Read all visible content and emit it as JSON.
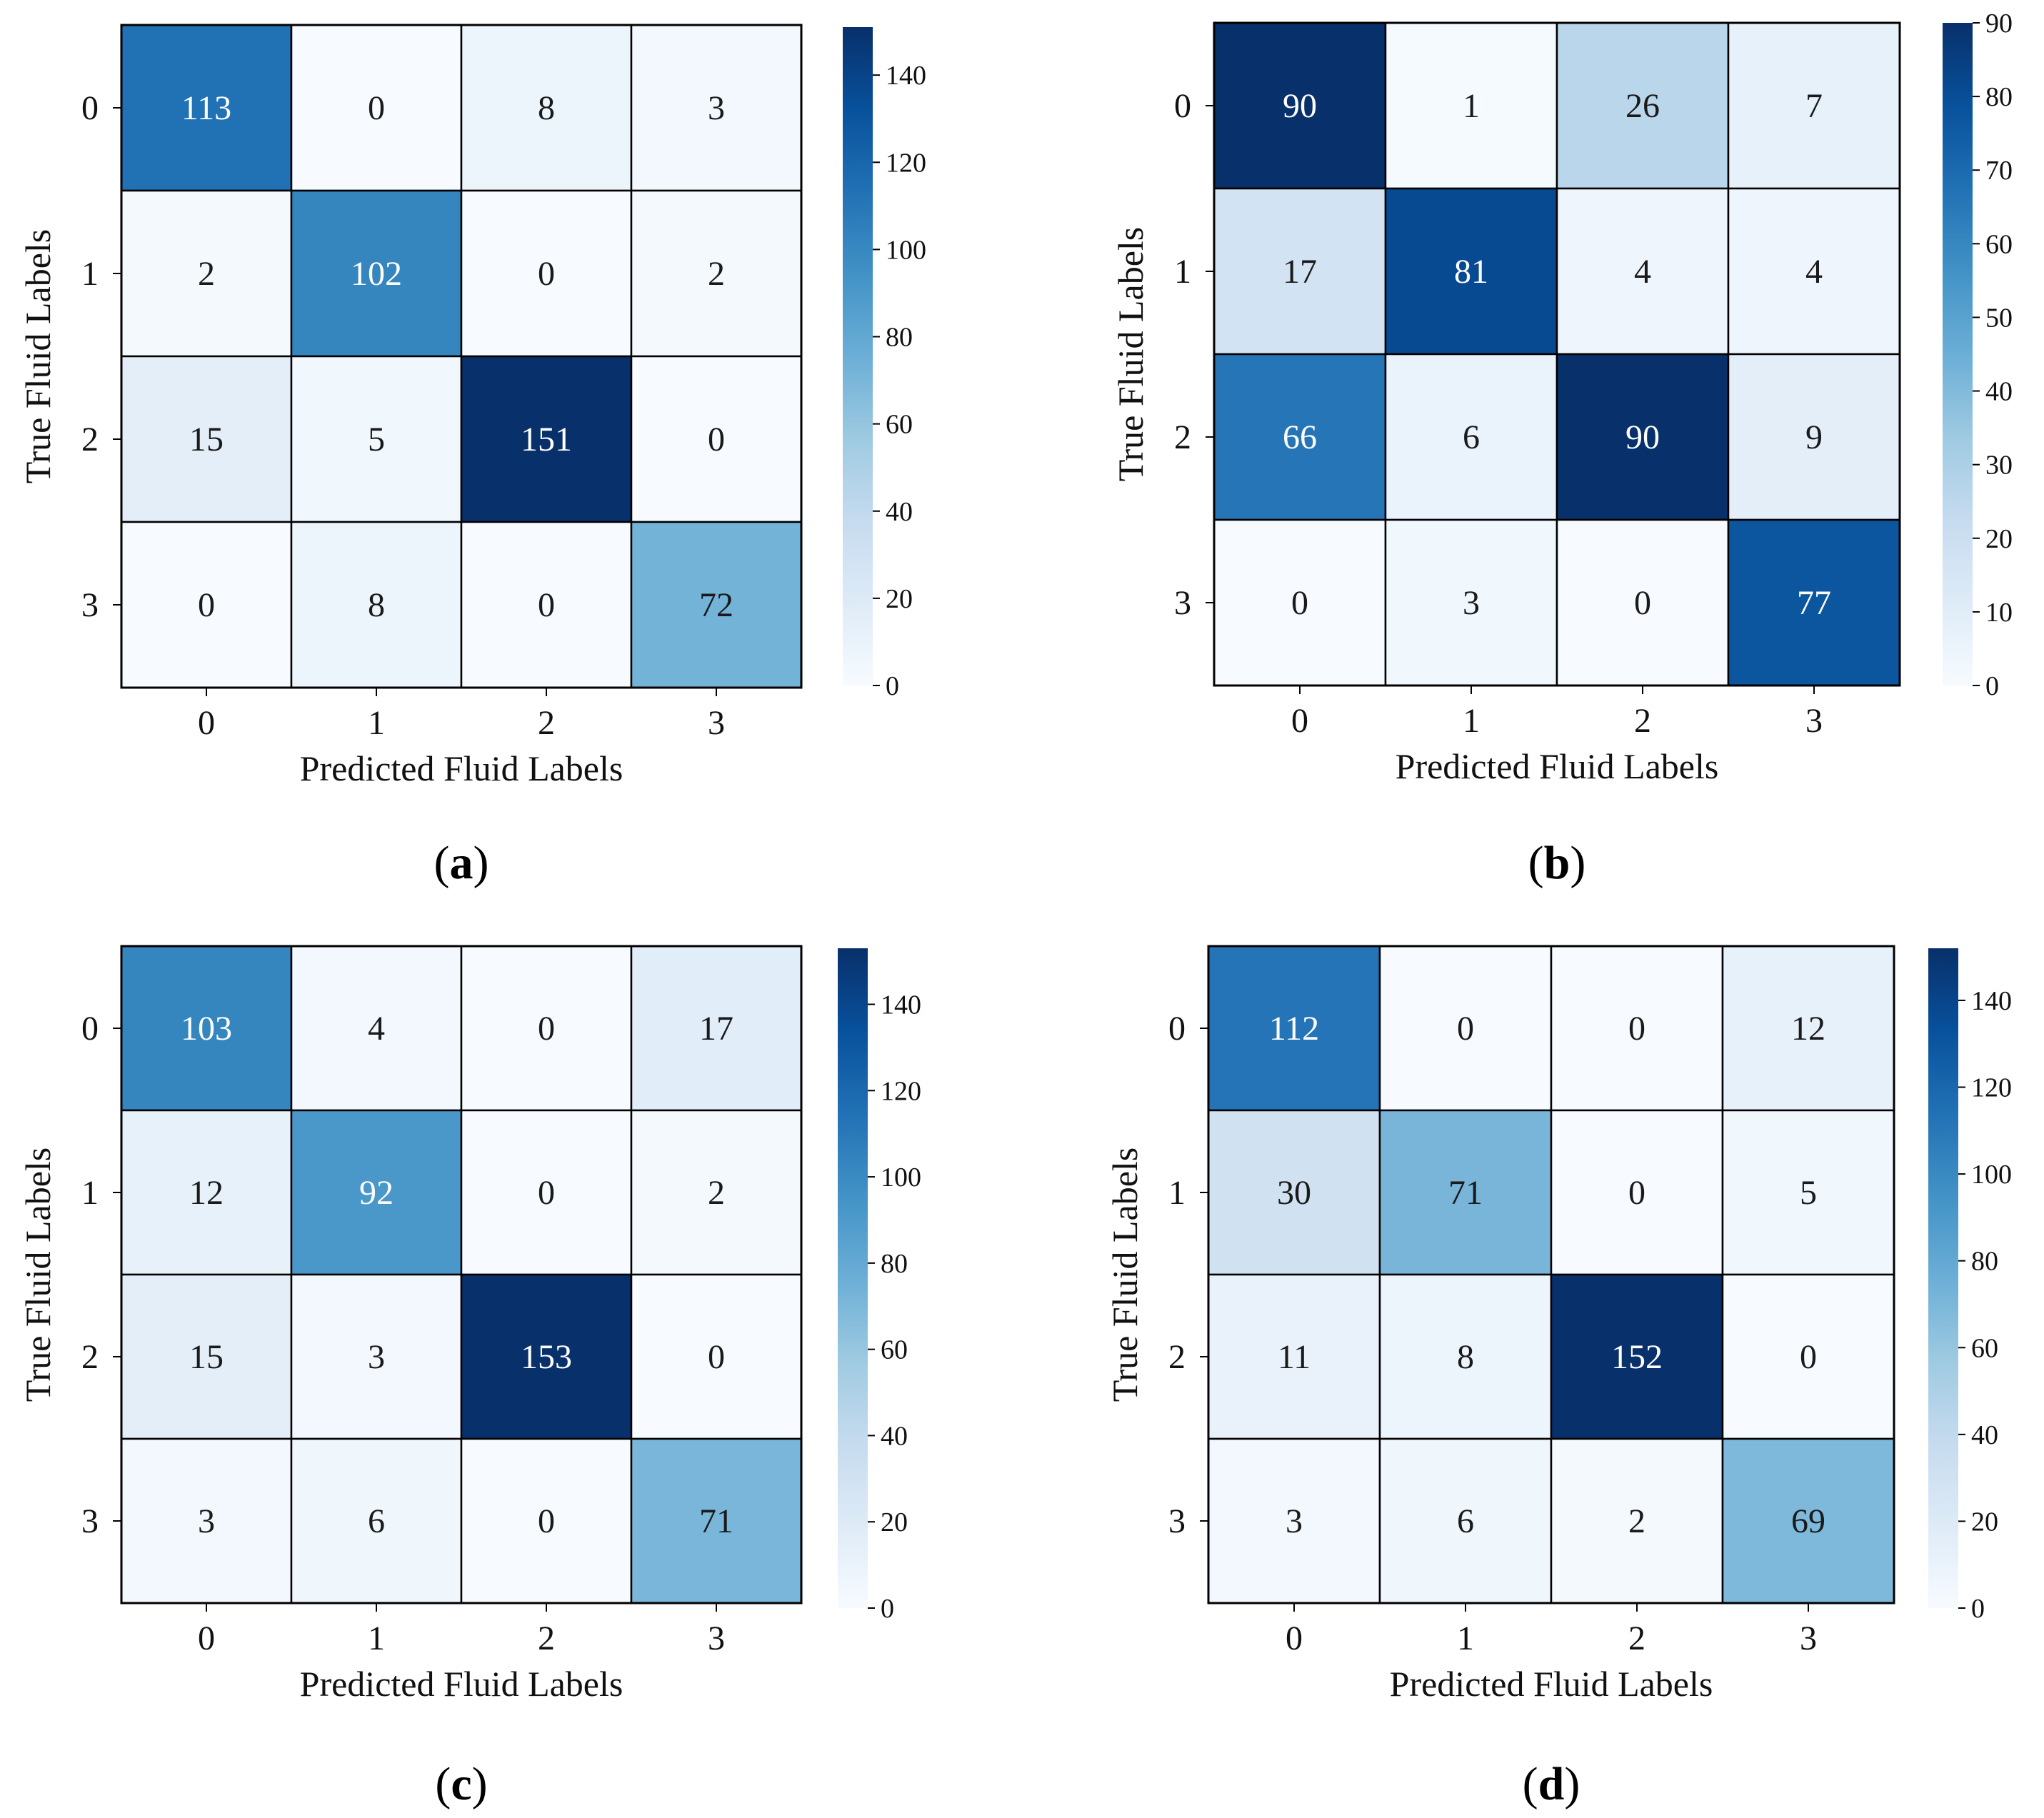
{
  "figure": {
    "colormap": "Blues",
    "colors": {
      "low": "#f7fbff",
      "high": "#08306b",
      "border": "#000000"
    }
  },
  "chart_data": [
    {
      "type": "heatmap",
      "panel": "a",
      "panel_label": "a",
      "xlabel": "Predicted Fluid Labels",
      "ylabel": "True Fluid Labels",
      "x_categories": [
        "0",
        "1",
        "2",
        "3"
      ],
      "y_categories": [
        "0",
        "1",
        "2",
        "3"
      ],
      "matrix": [
        [
          113,
          0,
          8,
          3
        ],
        [
          2,
          102,
          0,
          2
        ],
        [
          15,
          5,
          151,
          0
        ],
        [
          0,
          8,
          0,
          72
        ]
      ],
      "colorbar": {
        "vmin": 0,
        "vmax": 151,
        "ticks": [
          0,
          20,
          40,
          60,
          80,
          100,
          120,
          140
        ]
      }
    },
    {
      "type": "heatmap",
      "panel": "b",
      "panel_label": "b",
      "xlabel": "Predicted Fluid Labels",
      "ylabel": "True Fluid Labels",
      "x_categories": [
        "0",
        "1",
        "2",
        "3"
      ],
      "y_categories": [
        "0",
        "1",
        "2",
        "3"
      ],
      "matrix": [
        [
          90,
          1,
          26,
          7
        ],
        [
          17,
          81,
          4,
          4
        ],
        [
          66,
          6,
          90,
          9
        ],
        [
          0,
          3,
          0,
          77
        ]
      ],
      "colorbar": {
        "vmin": 0,
        "vmax": 90,
        "ticks": [
          0,
          10,
          20,
          30,
          40,
          50,
          60,
          70,
          80,
          90
        ]
      }
    },
    {
      "type": "heatmap",
      "panel": "c",
      "panel_label": "c",
      "xlabel": "Predicted Fluid Labels",
      "ylabel": "True Fluid Labels",
      "x_categories": [
        "0",
        "1",
        "2",
        "3"
      ],
      "y_categories": [
        "0",
        "1",
        "2",
        "3"
      ],
      "matrix": [
        [
          103,
          4,
          0,
          17
        ],
        [
          12,
          92,
          0,
          2
        ],
        [
          15,
          3,
          153,
          0
        ],
        [
          3,
          6,
          0,
          71
        ]
      ],
      "colorbar": {
        "vmin": 0,
        "vmax": 153,
        "ticks": [
          0,
          20,
          40,
          60,
          80,
          100,
          120,
          140
        ]
      }
    },
    {
      "type": "heatmap",
      "panel": "d",
      "panel_label": "d",
      "xlabel": "Predicted Fluid Labels",
      "ylabel": "True Fluid Labels",
      "x_categories": [
        "0",
        "1",
        "2",
        "3"
      ],
      "y_categories": [
        "0",
        "1",
        "2",
        "3"
      ],
      "matrix": [
        [
          112,
          0,
          0,
          12
        ],
        [
          30,
          71,
          0,
          5
        ],
        [
          11,
          8,
          152,
          0
        ],
        [
          3,
          6,
          2,
          69
        ]
      ],
      "colorbar": {
        "vmin": 0,
        "vmax": 152,
        "ticks": [
          0,
          20,
          40,
          60,
          80,
          100,
          120,
          140
        ]
      }
    }
  ]
}
